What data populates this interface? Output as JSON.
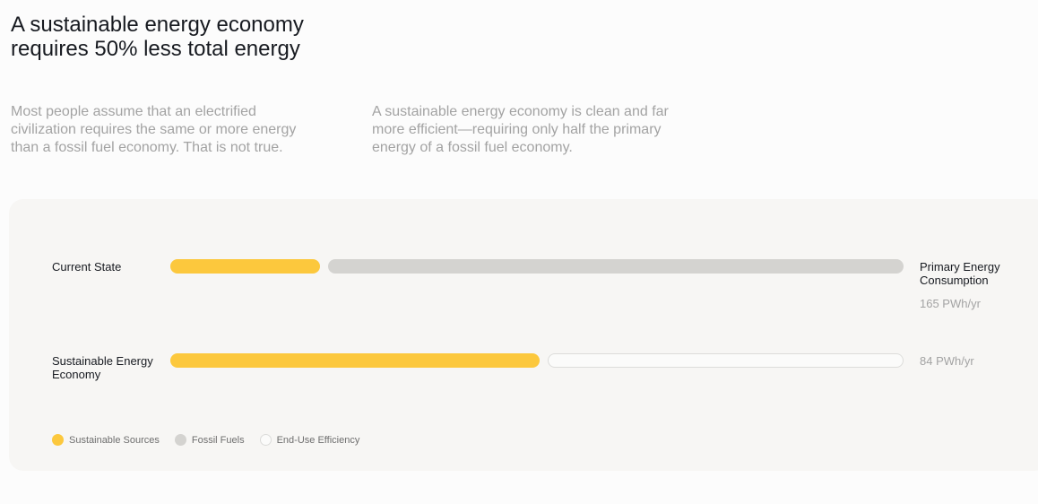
{
  "header": {
    "title": "A sustainable energy economy requires 50% less total energy",
    "intro_left": "Most people assume that an electrified civilization requires the same or more energy than a fossil fuel economy. That is not true.",
    "intro_right": "A sustainable energy economy is clean and far more efficient—requiring only half the primary energy of a fossil fuel economy."
  },
  "colors": {
    "sustainable": "#fcc83d",
    "fossil": "#d4d3d0",
    "efficiency_fill": "#fbfbfa",
    "efficiency_border": "#dcdcda",
    "panel": "#f7f6f4"
  },
  "chart_data": {
    "type": "bar",
    "orientation": "horizontal",
    "stacked": true,
    "side_label": "Primary Energy Consumption",
    "categories": [
      "Current State",
      "Sustainable Energy Economy"
    ],
    "totals_text": [
      "165 PWh/yr",
      "84 PWh/yr"
    ],
    "series": [
      {
        "name": "Sustainable Sources",
        "color": "#fcc83d",
        "values": [
          34,
          84
        ]
      },
      {
        "name": "Fossil Fuels",
        "color": "#d4d3d0",
        "values": [
          131,
          0
        ]
      },
      {
        "name": "End-Use Efficiency",
        "color": "#fbfbfa",
        "values": [
          0,
          81
        ]
      }
    ],
    "xlim": [
      0,
      165
    ],
    "legend": [
      "Sustainable Sources",
      "Fossil Fuels",
      "End-Use Efficiency"
    ],
    "legend_position": "bottom-left"
  }
}
